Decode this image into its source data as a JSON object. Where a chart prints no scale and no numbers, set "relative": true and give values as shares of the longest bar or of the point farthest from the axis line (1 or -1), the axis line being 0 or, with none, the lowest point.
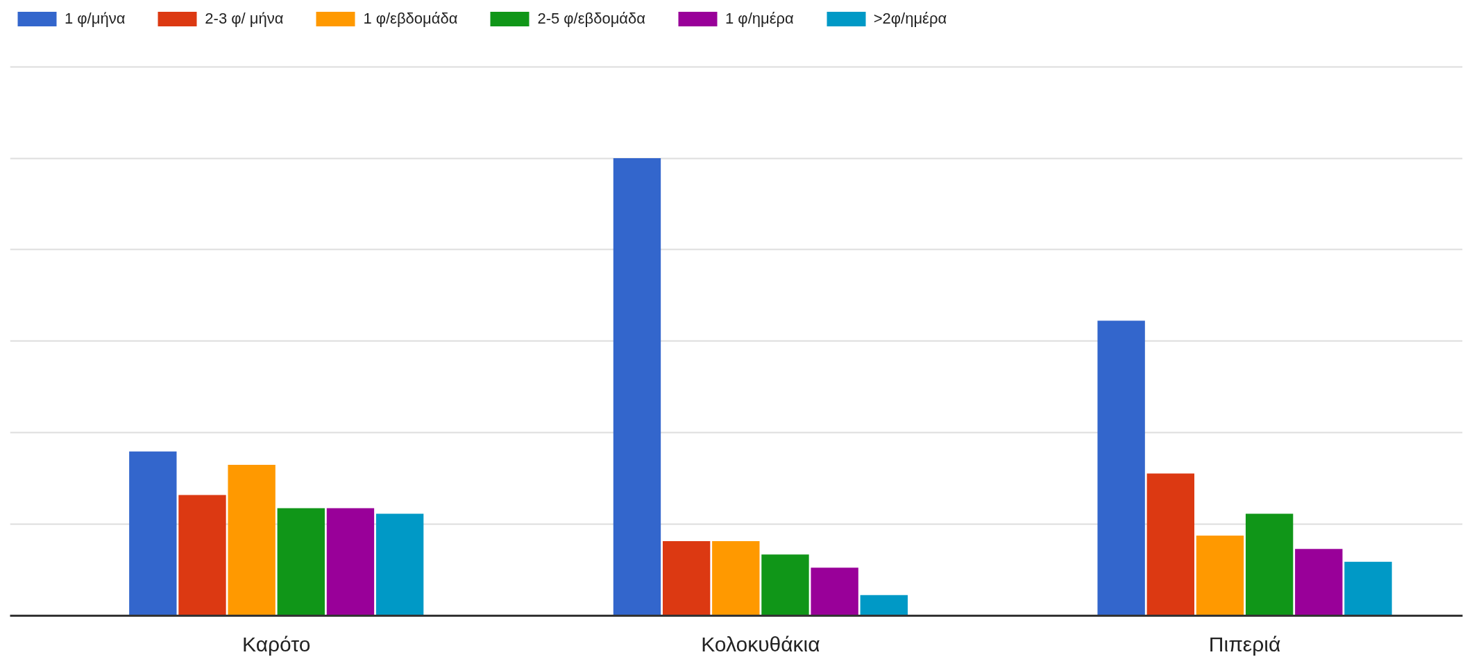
{
  "chart_data": {
    "type": "bar",
    "relative": true,
    "grid": "y",
    "legend": "top",
    "tick_labels": "x",
    "categories": [
      "Καρότο",
      "Κολοκυθάκια",
      "Πιπεριά"
    ],
    "series": [
      {
        "name": "1 φ/μήνα",
        "color": "#3366cc",
        "values": [
          0.359,
          1,
          0.645
        ]
      },
      {
        "name": "2-3 φ/ μήνα",
        "color": "#dc3912",
        "values": [
          0.264,
          0.163,
          0.311
        ]
      },
      {
        "name": "1 φ/εβδομάδα",
        "color": "#ff9900",
        "values": [
          0.33,
          0.163,
          0.175
        ]
      },
      {
        "name": "2-5 φ/εβδομάδα",
        "color": "#109618",
        "values": [
          0.235,
          0.134,
          0.223
        ]
      },
      {
        "name": "1 φ/ημέρα",
        "color": "#990099",
        "values": [
          0.235,
          0.105,
          0.146
        ]
      },
      {
        "name": ">2φ/ημέρα",
        "color": "#0099c6",
        "values": [
          0.223,
          0.045,
          0.118
        ]
      }
    ]
  }
}
